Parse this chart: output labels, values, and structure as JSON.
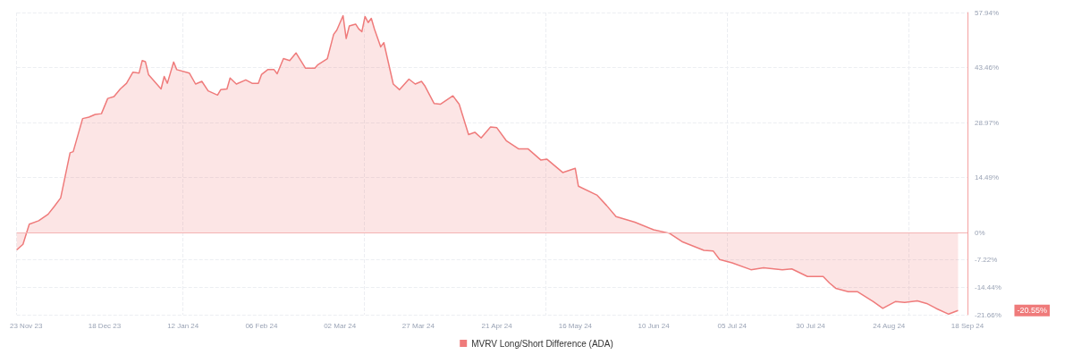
{
  "chart_data": {
    "type": "area",
    "legend": "bottom",
    "grid": true,
    "marker": "none",
    "x": [
      "2023-11-20",
      "2023-11-22",
      "2023-11-24",
      "2023-11-27",
      "2023-11-30",
      "2023-12-02",
      "2023-12-04",
      "2023-12-07",
      "2023-12-08",
      "2023-12-11",
      "2023-12-13",
      "2023-12-15",
      "2023-12-17",
      "2023-12-19",
      "2023-12-21",
      "2023-12-23",
      "2023-12-25",
      "2023-12-27",
      "2023-12-29",
      "2023-12-30",
      "2023-12-31",
      "2024-01-01",
      "2024-01-05",
      "2024-01-06",
      "2024-01-07",
      "2024-01-09",
      "2024-01-10",
      "2024-01-14",
      "2024-01-16",
      "2024-01-18",
      "2024-01-20",
      "2024-01-23",
      "2024-01-24",
      "2024-01-26",
      "2024-01-27",
      "2024-01-29",
      "2024-02-01",
      "2024-02-03",
      "2024-02-05",
      "2024-02-06",
      "2024-02-08",
      "2024-02-10",
      "2024-02-11",
      "2024-02-13",
      "2024-02-15",
      "2024-02-17",
      "2024-02-20",
      "2024-02-23",
      "2024-02-24",
      "2024-02-27",
      "2024-02-29",
      "2024-03-01",
      "2024-03-03",
      "2024-03-04",
      "2024-03-05",
      "2024-03-07",
      "2024-03-08",
      "2024-03-09",
      "2024-03-10",
      "2024-03-11",
      "2024-03-12",
      "2024-03-13",
      "2024-03-15",
      "2024-03-16",
      "2024-03-19",
      "2024-03-21",
      "2024-03-24",
      "2024-03-26",
      "2024-03-28",
      "2024-03-29",
      "2024-04-01",
      "2024-04-03",
      "2024-04-07",
      "2024-04-09",
      "2024-04-12",
      "2024-04-14",
      "2024-04-16",
      "2024-04-19",
      "2024-04-21",
      "2024-04-24",
      "2024-04-28",
      "2024-05-01",
      "2024-05-05",
      "2024-05-07",
      "2024-05-12",
      "2024-05-16",
      "2024-05-17",
      "2024-05-23",
      "2024-05-26",
      "2024-05-29",
      "2024-06-04",
      "2024-06-10",
      "2024-06-15",
      "2024-06-19",
      "2024-06-26",
      "2024-06-29",
      "2024-07-01",
      "2024-07-05",
      "2024-07-11",
      "2024-07-15",
      "2024-07-21",
      "2024-07-24",
      "2024-07-29",
      "2024-08-03",
      "2024-08-05",
      "2024-08-07",
      "2024-08-11",
      "2024-08-14",
      "2024-08-19",
      "2024-08-22",
      "2024-08-26",
      "2024-08-29",
      "2024-09-02",
      "2024-09-05",
      "2024-09-08",
      "2024-09-12",
      "2024-09-15"
    ],
    "series": [
      {
        "name": "MVRV Long/Short Difference (ADA)",
        "color": "#ef7b7b",
        "values": [
          -4.6,
          -3.1,
          2.2,
          3.1,
          4.8,
          6.9,
          9.1,
          21,
          21.3,
          30,
          30.4,
          31.1,
          31.3,
          35.3,
          35.8,
          37.8,
          39.3,
          42.2,
          42,
          45.3,
          45,
          41.6,
          37.8,
          41.1,
          39.3,
          44.9,
          42.9,
          42,
          39.1,
          39.8,
          37.3,
          36.2,
          37.6,
          37.8,
          40.7,
          39.1,
          40.2,
          39.3,
          39.3,
          41.6,
          42.9,
          42.9,
          41.8,
          45.8,
          45.3,
          47.3,
          43.3,
          43.3,
          44.2,
          45.8,
          52.2,
          53.3,
          57.1,
          51.1,
          54.4,
          54.9,
          53.6,
          52.9,
          56.9,
          55.3,
          56.4,
          53.6,
          48.9,
          50,
          39.1,
          37.6,
          40.4,
          39.1,
          39.8,
          38.7,
          34,
          33.8,
          36,
          33.8,
          25.8,
          26.4,
          24.9,
          27.8,
          27.6,
          24.2,
          22,
          22,
          19.1,
          19.3,
          15.8,
          16.9,
          12.2,
          9.8,
          7.1,
          4.2,
          2.7,
          0.7,
          -0.2,
          -2.4,
          -4.7,
          -4.9,
          -7.1,
          -8,
          -9.8,
          -9.3,
          -9.8,
          -9.6,
          -11.6,
          -11.6,
          -13.3,
          -14.7,
          -15.6,
          -15.6,
          -18.2,
          -20,
          -18.2,
          -18.4,
          -18,
          -18.7,
          -20,
          -21.5,
          -20.55
        ]
      }
    ],
    "xlim": [
      "2023-11-20",
      "2024-09-18"
    ],
    "xticks": [
      {
        "value": "2023-11-23",
        "label": "23 Nov 23"
      },
      {
        "value": "2023-12-18",
        "label": "18 Dec 23"
      },
      {
        "value": "2024-01-12",
        "label": "12 Jan 24"
      },
      {
        "value": "2024-02-06",
        "label": "06 Feb 24"
      },
      {
        "value": "2024-03-02",
        "label": "02 Mar 24"
      },
      {
        "value": "2024-03-27",
        "label": "27 Mar 24"
      },
      {
        "value": "2024-04-21",
        "label": "21 Apr 24"
      },
      {
        "value": "2024-05-16",
        "label": "16 May 24"
      },
      {
        "value": "2024-06-10",
        "label": "10 Jun 24"
      },
      {
        "value": "2024-07-05",
        "label": "05 Jul 24"
      },
      {
        "value": "2024-07-30",
        "label": "30 Jul 24"
      },
      {
        "value": "2024-08-24",
        "label": "24 Aug 24"
      },
      {
        "value": "2024-09-18",
        "label": "18 Sep 24"
      }
    ],
    "ylim": [
      -21.66,
      57.94
    ],
    "yticks": [
      {
        "value": -21.66,
        "label": "-21.66%"
      },
      {
        "value": -14.44,
        "label": "-14.44%"
      },
      {
        "value": -7.22,
        "label": "-7.22%"
      },
      {
        "value": 0,
        "label": "0%"
      },
      {
        "value": 14.49,
        "label": "14.49%"
      },
      {
        "value": 28.97,
        "label": "28.97%"
      },
      {
        "value": 43.46,
        "label": "43.46%"
      },
      {
        "value": 57.94,
        "label": "57.94%"
      }
    ],
    "ref_lines": [
      {
        "axis": "y",
        "value": 0,
        "color": "#f4b4b4"
      }
    ],
    "annotations": [
      "-20.55%"
    ]
  }
}
